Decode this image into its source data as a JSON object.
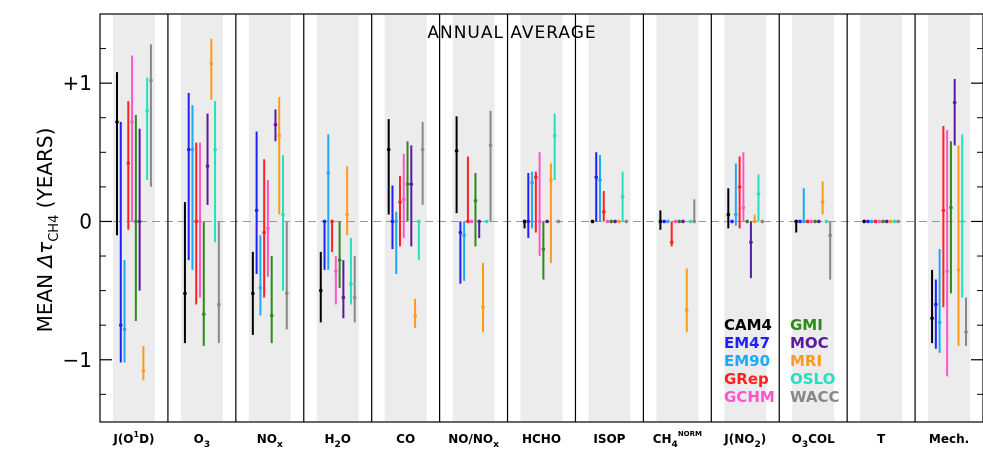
{
  "chart_data": {
    "type": "scatter",
    "title": "ANNUAL AVERAGE",
    "ylabel": {
      "prefix": "MEAN ",
      "symbol": "Δτ",
      "sub": "CH4",
      "suffix": " (YEARS)"
    },
    "ylim": [
      -1.45,
      1.5
    ],
    "yticks": [
      {
        "value": 1,
        "label": "+1"
      },
      {
        "value": 0,
        "label": "0"
      },
      {
        "value": -1,
        "label": "−1"
      }
    ],
    "categories": [
      {
        "base": "J(O",
        "sup": "1",
        "tail": "D)"
      },
      {
        "base": "O",
        "sub": "3"
      },
      {
        "base": "NO",
        "sub": "x"
      },
      {
        "base": "H",
        "sub": "2",
        "tail": "O"
      },
      {
        "base": "CO"
      },
      {
        "base": "NO/NO",
        "sub": "x"
      },
      {
        "base": "HCHO"
      },
      {
        "base": "ISOP"
      },
      {
        "base": "CH",
        "sub": "4",
        "sup": "NORM"
      },
      {
        "base": "J(NO",
        "sub": "2",
        "tail": ")"
      },
      {
        "base": "O",
        "sub": "3",
        "tail": "COL"
      },
      {
        "base": "T"
      },
      {
        "base": "Mech."
      }
    ],
    "series": [
      {
        "name": "CAM4",
        "color": "#000000",
        "points": [
          [
            0.72,
            -0.1,
            1.08
          ],
          [
            -0.52,
            -0.88,
            0.14
          ],
          [
            -0.52,
            -0.82,
            -0.22
          ],
          [
            -0.5,
            -0.73,
            -0.22
          ],
          [
            0.52,
            0.05,
            0.74
          ],
          [
            0.51,
            0.06,
            0.76
          ],
          [
            0,
            -0.05,
            0
          ],
          [
            0,
            0,
            0
          ],
          [
            0,
            -0.06,
            0.08
          ],
          [
            0.05,
            -0.05,
            0.24
          ],
          [
            0,
            -0.08,
            0
          ],
          [
            0,
            0,
            0
          ],
          [
            -0.7,
            -0.88,
            -0.35
          ]
        ]
      },
      {
        "name": "EM47",
        "color": "#1f1fff",
        "points": [
          [
            -0.75,
            -1.02,
            0.72
          ],
          [
            0.52,
            -0.28,
            0.93
          ],
          [
            0.08,
            -0.38,
            0.65
          ],
          [
            0,
            -0.35,
            0
          ],
          [
            0,
            -0.2,
            0.26
          ],
          [
            -0.08,
            -0.45,
            0
          ],
          [
            0,
            -0.12,
            0.35
          ],
          [
            0.32,
            0,
            0.5
          ],
          [
            0,
            0,
            0
          ],
          [
            0,
            0,
            0
          ],
          [
            0,
            0,
            0
          ],
          [
            0,
            0,
            0
          ],
          [
            -0.6,
            -0.92,
            -0.42
          ]
        ]
      },
      {
        "name": "EM90",
        "color": "#1ea8f5",
        "points": [
          [
            -0.78,
            -1.02,
            -0.28
          ],
          [
            0.52,
            -0.35,
            0.84
          ],
          [
            -0.48,
            -0.68,
            -0.1
          ],
          [
            0.35,
            -0.35,
            0.63
          ],
          [
            0,
            -0.38,
            0.07
          ],
          [
            -0.1,
            -0.43,
            0
          ],
          [
            0.28,
            -0.05,
            0.36
          ],
          [
            0.3,
            0,
            0.48
          ],
          [
            0,
            0,
            0
          ],
          [
            0.05,
            -0.03,
            0.42
          ],
          [
            0,
            0,
            0.24
          ],
          [
            0,
            0,
            0
          ],
          [
            -0.73,
            -0.95,
            -0.2
          ]
        ]
      },
      {
        "name": "GRep",
        "color": "#ff2020",
        "points": [
          [
            0.42,
            -0.06,
            0.87
          ],
          [
            0,
            -0.6,
            0.57
          ],
          [
            -0.08,
            -0.55,
            0.45
          ],
          [
            0,
            -0.22,
            0
          ],
          [
            0.14,
            -0.18,
            0.33
          ],
          [
            0,
            0,
            0.47
          ],
          [
            0.32,
            -0.08,
            0.36
          ],
          [
            0.07,
            0,
            0.22
          ],
          [
            -0.15,
            -0.18,
            0
          ],
          [
            0.25,
            -0.05,
            0.47
          ],
          [
            0,
            0,
            0
          ],
          [
            0,
            0,
            0
          ],
          [
            0.08,
            -0.62,
            0.69
          ]
        ]
      },
      {
        "name": "GCHM",
        "color": "#ff55cc",
        "points": [
          [
            0.72,
            0,
            1.2
          ],
          [
            0,
            -0.55,
            0.57
          ],
          [
            -0.05,
            -0.4,
            0.3
          ],
          [
            -0.36,
            -0.6,
            -0.25
          ],
          [
            0.16,
            -0.12,
            0.49
          ],
          [
            0,
            0,
            0
          ],
          [
            0,
            -0.25,
            0.5
          ],
          [
            0,
            0,
            0
          ],
          [
            0,
            0,
            0
          ],
          [
            0.1,
            0,
            0.5
          ],
          [
            0,
            0,
            0
          ],
          [
            0,
            0,
            0
          ],
          [
            -0.36,
            -1.12,
            0.66
          ]
        ]
      },
      {
        "name": "GMI",
        "color": "#2a8a1a",
        "points": [
          [
            0,
            -0.72,
            0.77
          ],
          [
            -0.67,
            -0.9,
            0.0
          ],
          [
            -0.68,
            -0.88,
            -0.25
          ],
          [
            -0.28,
            -0.48,
            0.0
          ],
          [
            0.27,
            0.0,
            0.58
          ],
          [
            0.15,
            -0.18,
            0.35
          ],
          [
            -0.2,
            -0.42,
            0
          ],
          [
            0,
            0,
            0
          ],
          [
            0,
            0,
            0
          ],
          [
            0,
            0,
            0
          ],
          [
            0,
            0,
            0
          ],
          [
            0,
            0,
            0
          ],
          [
            0.1,
            -0.52,
            0.58
          ]
        ]
      },
      {
        "name": "MOC",
        "color": "#5a1aa0",
        "points": [
          [
            0,
            -0.5,
            0.67
          ],
          [
            0.4,
            0.12,
            0.78
          ],
          [
            0.7,
            0.58,
            0.81
          ],
          [
            -0.55,
            -0.7,
            -0.28
          ],
          [
            0.27,
            -0.18,
            0.55
          ],
          [
            0,
            -0.12,
            0
          ],
          [
            0,
            0,
            0
          ],
          [
            0,
            0,
            0
          ],
          [
            0,
            0,
            0
          ],
          [
            -0.15,
            -0.41,
            0.0
          ],
          [
            0,
            0,
            0
          ],
          [
            0,
            0,
            0
          ],
          [
            0.86,
            0.55,
            1.03
          ]
        ]
      },
      {
        "name": "MRI",
        "color": "#ff9a1a",
        "points": [
          [
            -1.08,
            -1.15,
            -0.9
          ],
          [
            1.14,
            0.88,
            1.32
          ],
          [
            0.62,
            0.05,
            0.9
          ],
          [
            0.05,
            -0.1,
            0.4
          ],
          [
            -0.68,
            -0.77,
            -0.56
          ],
          [
            -0.62,
            -0.8,
            -0.3
          ],
          [
            0.3,
            -0.3,
            0.42
          ],
          [
            0,
            0,
            0
          ],
          [
            -0.64,
            -0.8,
            -0.34
          ],
          [
            0,
            0,
            0.05
          ],
          [
            0.14,
            0.05,
            0.29
          ],
          [
            0,
            0,
            0
          ],
          [
            -0.35,
            -0.9,
            0.55
          ]
        ]
      },
      {
        "name": "OSLO",
        "color": "#22e0c0",
        "points": [
          [
            0.8,
            0.3,
            1.04
          ],
          [
            0.52,
            -0.15,
            0.87
          ],
          [
            0.05,
            -0.5,
            0.48
          ],
          [
            -0.45,
            -0.6,
            -0.12
          ],
          [
            0,
            -0.28,
            0
          ],
          [
            0,
            0,
            0
          ],
          [
            0.62,
            0.3,
            0.78
          ],
          [
            0.18,
            0,
            0.36
          ],
          [
            0,
            0,
            0
          ],
          [
            0.2,
            0,
            0.34
          ],
          [
            0,
            0,
            0
          ],
          [
            0,
            0,
            0
          ],
          [
            0,
            -0.55,
            0.63
          ]
        ]
      },
      {
        "name": "WACC",
        "color": "#888888",
        "points": [
          [
            1.02,
            0.25,
            1.28
          ],
          [
            -0.6,
            -0.88,
            0
          ],
          [
            -0.52,
            -0.78,
            0
          ],
          [
            -0.55,
            -0.73,
            -0.25
          ],
          [
            0.52,
            0.12,
            0.72
          ],
          [
            0.55,
            0,
            0.8
          ],
          [
            0,
            0,
            0
          ],
          [
            0,
            0,
            0
          ],
          [
            0,
            0,
            0.16
          ],
          [
            0,
            0,
            0
          ],
          [
            -0.1,
            -0.42,
            0
          ],
          [
            0,
            0,
            0
          ],
          [
            -0.8,
            -0.9,
            -0.55
          ]
        ]
      }
    ]
  }
}
